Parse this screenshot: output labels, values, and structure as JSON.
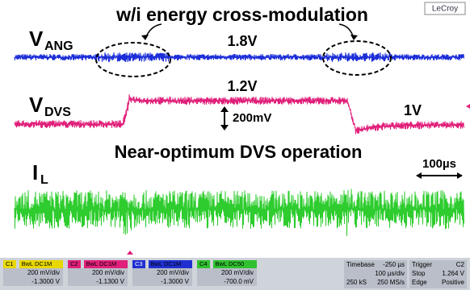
{
  "title": "w/i energy cross-modulation",
  "brand": "LeCroy",
  "labels": {
    "vang": {
      "main": "V",
      "sub": "ANG"
    },
    "vdvs": {
      "main": "V",
      "sub": "DVS"
    },
    "il": {
      "main": "I",
      "sub": "L"
    }
  },
  "annotations": {
    "vang_level": "1.8V",
    "vdvs_high": "1.2V",
    "vdvs_step": "200mV",
    "vdvs_low": "1V",
    "operation": "Near-optimum DVS operation",
    "time_scale": "100µs"
  },
  "channels": [
    {
      "name": "C1",
      "coupling": "BwL DC1M",
      "scale": "200 mV/div",
      "offset": "-1.3000 V"
    },
    {
      "name": "C2",
      "coupling": "BwL DC1M",
      "scale": "200 mV/div",
      "offset": "-1.1300 V"
    },
    {
      "name": "C3",
      "coupling": "BwL DC1M",
      "scale": "200 mV/div",
      "offset": "-1.3000 V"
    },
    {
      "name": "C4",
      "coupling": "BwL DC50",
      "scale": "200 mV/div",
      "offset": "-700.0 mV"
    }
  ],
  "timebase": {
    "label": "Timebase",
    "delay": "-250 µs",
    "per_div": "100 µs/div",
    "samples": "250 kS",
    "rate": "250 MS/s"
  },
  "trigger": {
    "label": "Trigger",
    "channel": "C2",
    "mode": "Stop",
    "level": "1.264 V",
    "type": "Edge",
    "slope": "Positive"
  }
}
